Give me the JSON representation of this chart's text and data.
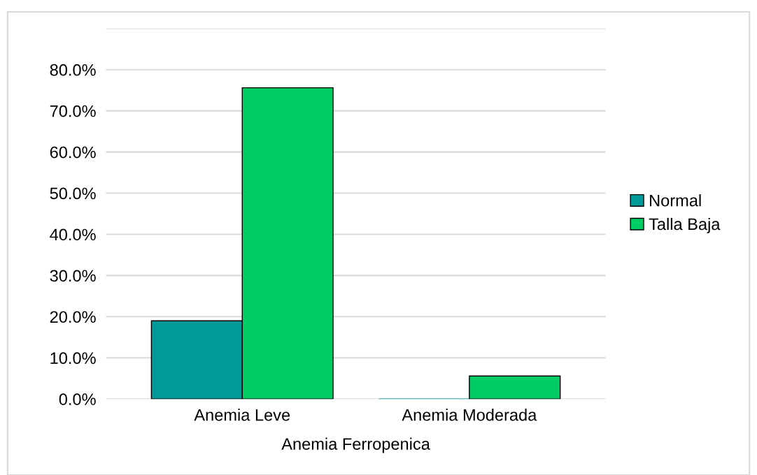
{
  "chart_data": {
    "type": "bar",
    "xlabel": "Anemia Ferropenica",
    "categories": [
      "Anemia Leve",
      "Anemia Moderada"
    ],
    "series": [
      {
        "name": "Normal",
        "color": "#009a9a",
        "values": [
          19.0,
          0.0
        ]
      },
      {
        "name": "Talla Baja",
        "color": "#00cc66",
        "values": [
          75.6,
          5.6
        ]
      }
    ],
    "ylim": [
      0,
      90
    ],
    "yticks": [
      {
        "value": 0,
        "label": "0.0%"
      },
      {
        "value": 10,
        "label": "10.0%"
      },
      {
        "value": 20,
        "label": "20.0%"
      },
      {
        "value": 30,
        "label": "30.0%"
      },
      {
        "value": 40,
        "label": "40.0%"
      },
      {
        "value": 50,
        "label": "50.0%"
      },
      {
        "value": 60,
        "label": "60.0%"
      },
      {
        "value": 70,
        "label": "70.0%"
      },
      {
        "value": 80,
        "label": "80.0%"
      },
      {
        "value": 90,
        "label": null
      }
    ],
    "grid": "y",
    "legend": "right"
  }
}
